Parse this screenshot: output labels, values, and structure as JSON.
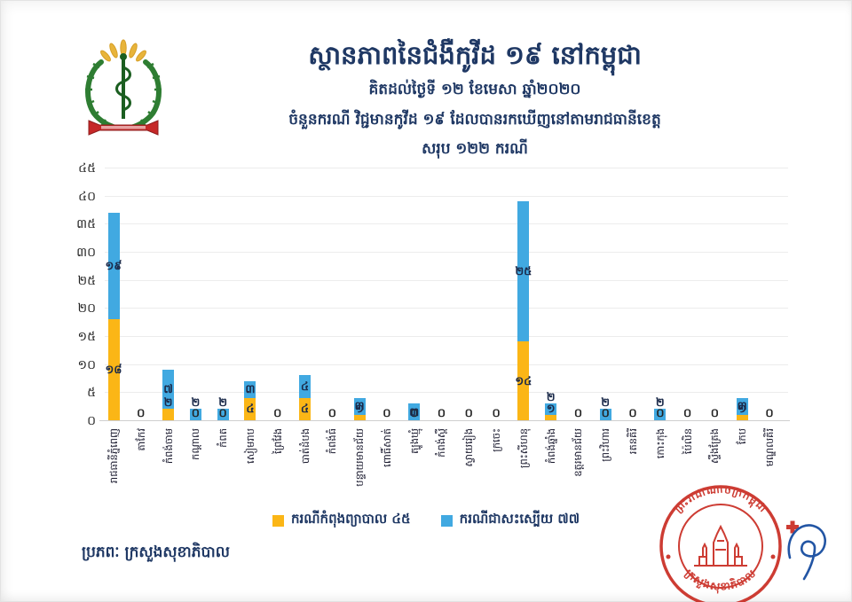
{
  "header": {
    "title": "ស្ថានភាពនៃជំងឺកូវីដ ១៩ នៅកម្ពុជា",
    "date_line": "គិតដល់ថ្ងៃទី ១២ ខែមេសា ឆ្នាំ២០២០",
    "subtitle": "ចំនួនករណី វិជ្ជមានកូវីដ ១៩ ដែលបានរកឃើញនៅតាមរាជធានីខេត្ត",
    "total_line": "សរុប ១២២ ករណី"
  },
  "chart_data": {
    "type": "bar",
    "stacked": true,
    "ylim": [
      0,
      45
    ],
    "grid": true,
    "legend_position": "bottom",
    "y_tick_values": [
      0,
      5,
      10,
      15,
      20,
      25,
      30,
      35,
      40,
      45
    ],
    "y_ticks_khmer": [
      "០",
      "៥",
      "១០",
      "១៥",
      "២០",
      "២៥",
      "៣០",
      "៣៥",
      "៤០",
      "៤៥"
    ],
    "categories": [
      "រាជធានីភ្នំពេញ",
      "តាកែវ",
      "កំពង់ចាម",
      "កណ្តាល",
      "កំពត",
      "សៀមរាប",
      "ព្រៃវែង",
      "បាត់ដំបង",
      "កំពង់ធំ",
      "បន្ទាយមានជ័យ",
      "ពោធិ៍សាត់",
      "ត្បូងឃ្មុំ",
      "កំពង់ស្ពឺ",
      "ស្វាយរៀង",
      "ក្រចេះ",
      "ព្រះសីហនុ",
      "កំពង់ឆ្នាំង",
      "ឧត្តរមានជ័យ",
      "ព្រះវិហារ",
      "រតនគិរី",
      "កោះកុង",
      "ប៉ៃលិន",
      "ស្ទឹងត្រែង",
      "កែប",
      "មណ្ឌលគិរី"
    ],
    "series": [
      {
        "name": "ករណីកំពុងព្យាបាល ៤៥",
        "total": 45,
        "color": "#FBB616",
        "values": [
          18,
          0,
          2,
          0,
          0,
          4,
          0,
          4,
          0,
          1,
          0,
          0,
          0,
          0,
          0,
          14,
          1,
          0,
          0,
          0,
          0,
          0,
          0,
          1,
          0
        ],
        "labels_khmer": [
          "១៨",
          "០",
          "២",
          "០",
          "០",
          "៤",
          "០",
          "៤",
          "០",
          "១",
          "០",
          "០",
          "០",
          "០",
          "០",
          "១៤",
          "១",
          "០",
          "០",
          "០",
          "០",
          "០",
          "០",
          "១",
          "០"
        ]
      },
      {
        "name": "ករណីជាសះស្បើយ ៧៧",
        "total": 77,
        "color": "#41A9E1",
        "values": [
          19,
          0,
          7,
          2,
          2,
          3,
          0,
          4,
          0,
          3,
          0,
          3,
          0,
          0,
          0,
          25,
          2,
          0,
          2,
          0,
          2,
          0,
          0,
          3,
          0
        ],
        "labels_khmer": [
          "១៩",
          "",
          "៧",
          "២",
          "២",
          "៣",
          "",
          "៤",
          "",
          "៣",
          "",
          "៣",
          "",
          "",
          "",
          "២៥",
          "២",
          "",
          "២",
          "",
          "២",
          "",
          "",
          "៣",
          ""
        ]
      }
    ],
    "grand_total_khmer": "១២២"
  },
  "legend": {
    "treated": "ករណីកំពុងព្យាបាល ៤៥",
    "recovered": "ករណីជាសះស្បើយ ៧៧"
  },
  "footer": {
    "source": "ប្រភពៈ ក្រសួងសុខាភិបាល"
  },
  "stamp": {
    "top_text": "ព្រះរាជាណាចក្រកម្ពុជា",
    "bottom_text": "ក្រសួងសុខាភិបាល",
    "color": "#C8281E"
  },
  "colors": {
    "title": "#1F3864",
    "treated": "#FBB616",
    "recovered": "#41A9E1",
    "signature": "#2255A4"
  }
}
